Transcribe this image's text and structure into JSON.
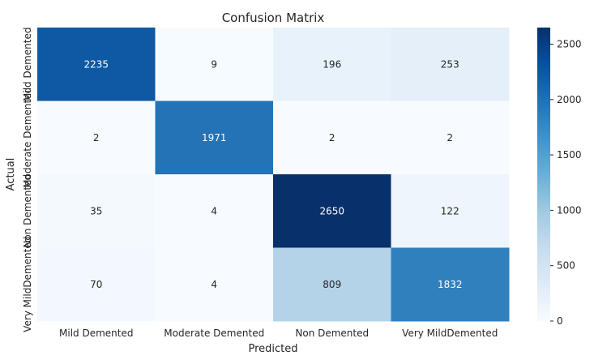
{
  "chart_data": {
    "type": "heatmap",
    "title": "Confusion Matrix",
    "xlabel": "Predicted",
    "ylabel": "Actual",
    "x_categories": [
      "Mild Demented",
      "Moderate Demented",
      "Non Demented",
      "Very MildDemented"
    ],
    "y_categories": [
      "Mild Demented",
      "Moderate Demented",
      "Non Demented",
      "Very MildDemented"
    ],
    "values": [
      [
        2235,
        9,
        196,
        253
      ],
      [
        2,
        1971,
        2,
        2
      ],
      [
        35,
        4,
        2650,
        122
      ],
      [
        70,
        4,
        809,
        1832
      ]
    ],
    "colormap": "Blues",
    "color_range": [
      0,
      2650
    ],
    "colorbar_ticks": [
      0,
      500,
      1000,
      1500,
      2000,
      2500
    ],
    "colors": {
      "low": "#f7fbff",
      "high": "#08306b"
    }
  }
}
